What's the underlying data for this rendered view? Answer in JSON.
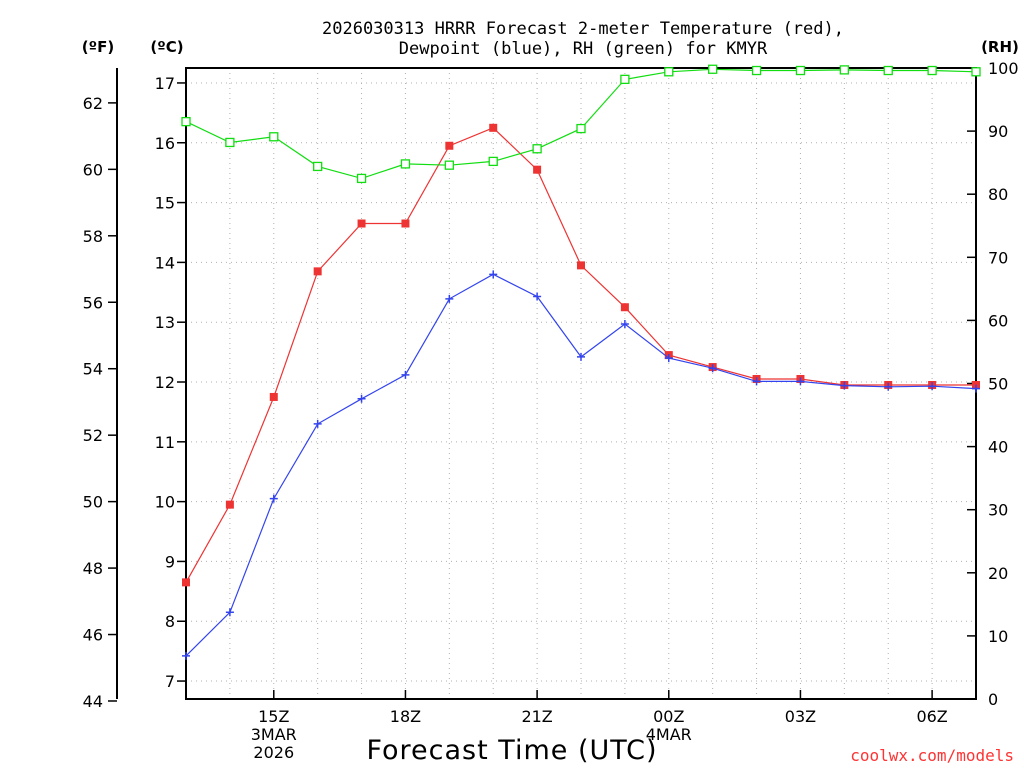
{
  "chart_data": {
    "type": "line",
    "title_lines": [
      "2026030313 HRRR Forecast 2-meter Temperature (red),",
      "Dewpoint (blue), RH (green) for KMYR"
    ],
    "xlabel": "Forecast Time (UTC)",
    "credit": "coolwx.com/models",
    "units": {
      "fahrenheit": "(ºF)",
      "celsius": "(ºC)",
      "rh": "(RH)"
    },
    "x_hours": [
      13,
      14,
      15,
      16,
      17,
      18,
      19,
      20,
      21,
      22,
      23,
      24,
      25,
      26,
      27,
      28,
      29,
      30,
      31
    ],
    "xlim": [
      13,
      31
    ],
    "x_ticks": [
      {
        "hour": 15,
        "lines": [
          "15Z",
          "3MAR",
          "2026"
        ]
      },
      {
        "hour": 18,
        "lines": [
          "18Z"
        ]
      },
      {
        "hour": 21,
        "lines": [
          "21Z"
        ]
      },
      {
        "hour": 24,
        "lines": [
          "00Z",
          "4MAR"
        ]
      },
      {
        "hour": 27,
        "lines": [
          "03Z"
        ]
      },
      {
        "hour": 30,
        "lines": [
          "06Z"
        ]
      }
    ],
    "celsius_axis": {
      "ylim": [
        6.7,
        17.25
      ],
      "ticks": [
        7,
        8,
        9,
        10,
        11,
        12,
        13,
        14,
        15,
        16,
        17
      ]
    },
    "fahrenheit_axis": {
      "ticks": [
        44,
        46,
        48,
        50,
        52,
        54,
        56,
        58,
        60,
        62
      ]
    },
    "rh_axis": {
      "ylim": [
        0,
        100
      ],
      "ticks": [
        0,
        10,
        20,
        30,
        40,
        50,
        60,
        70,
        80,
        90,
        100
      ]
    },
    "series": [
      {
        "name": "Temperature",
        "axis": "celsius",
        "color": "#ee3333",
        "marker": "filled-square",
        "values": [
          8.65,
          9.95,
          11.75,
          13.85,
          14.65,
          14.65,
          15.95,
          16.25,
          15.55,
          13.95,
          13.25,
          12.45,
          12.25,
          12.05,
          12.05,
          11.95,
          11.95,
          11.95,
          11.95
        ]
      },
      {
        "name": "Dewpoint",
        "axis": "celsius",
        "color": "#3344ee",
        "marker": "plus",
        "values": [
          7.42,
          8.15,
          10.05,
          11.3,
          11.72,
          12.12,
          13.39,
          13.8,
          13.43,
          12.42,
          12.97,
          12.4,
          12.23,
          12.01,
          12.01,
          11.94,
          11.92,
          11.93,
          11.89
        ]
      },
      {
        "name": "RH",
        "axis": "rh",
        "color": "#11dd11",
        "marker": "open-square",
        "values": [
          91.5,
          88.2,
          89.1,
          84.4,
          82.5,
          84.8,
          84.6,
          85.2,
          87.2,
          90.4,
          98.2,
          99.4,
          99.8,
          99.6,
          99.6,
          99.7,
          99.6,
          99.6,
          99.4
        ]
      }
    ]
  }
}
